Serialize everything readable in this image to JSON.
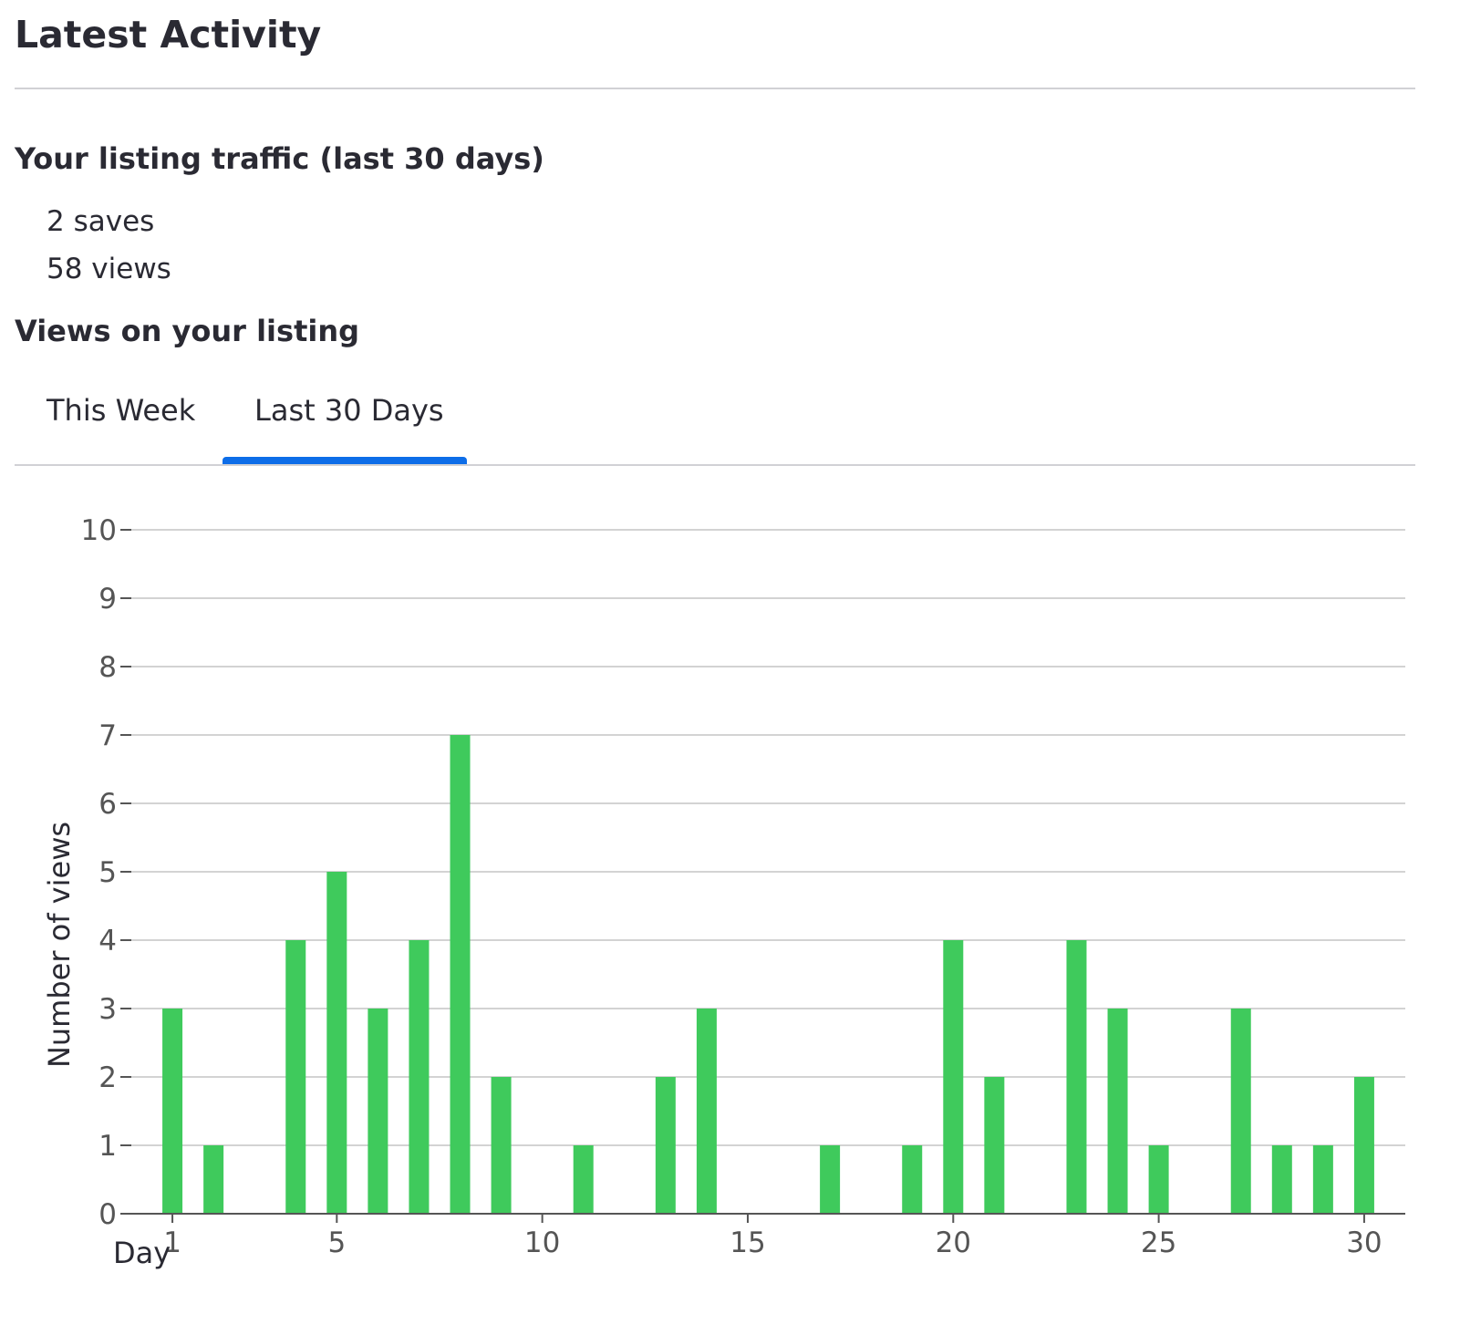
{
  "page": {
    "title": "Latest Activity"
  },
  "traffic": {
    "title": "Your listing traffic (last 30 days)",
    "saves": "2 saves",
    "views": "58 views"
  },
  "views_section": {
    "title": "Views on your listing",
    "tabs": [
      {
        "label": "This Week",
        "selected": false
      },
      {
        "label": "Last 30 Days",
        "selected": true
      }
    ]
  },
  "colors": {
    "bar": "#3fca5c",
    "tab_indicator": "#0d6de8",
    "text": "#2a2a33",
    "axis_text": "#555555",
    "gridline": "#d3d3d3"
  },
  "chart_data": {
    "type": "bar",
    "xlabel": "Day",
    "ylabel": "Number of views",
    "x": [
      1,
      2,
      3,
      4,
      5,
      6,
      7,
      8,
      9,
      10,
      11,
      12,
      13,
      14,
      15,
      16,
      17,
      18,
      19,
      20,
      21,
      22,
      23,
      24,
      25,
      26,
      27,
      28,
      29,
      30
    ],
    "values": [
      3,
      1,
      0,
      4,
      5,
      3,
      4,
      7,
      2,
      0,
      1,
      0,
      2,
      3,
      0,
      0,
      1,
      0,
      1,
      4,
      2,
      0,
      4,
      3,
      1,
      0,
      3,
      1,
      1,
      2
    ],
    "xticks": [
      1,
      5,
      10,
      15,
      20,
      25,
      30
    ],
    "yticks": [
      0,
      1,
      2,
      3,
      4,
      5,
      6,
      7,
      8,
      9,
      10
    ],
    "ylim": [
      0,
      10
    ],
    "xlim": [
      0,
      31
    ],
    "grid": true,
    "legend": "none"
  }
}
